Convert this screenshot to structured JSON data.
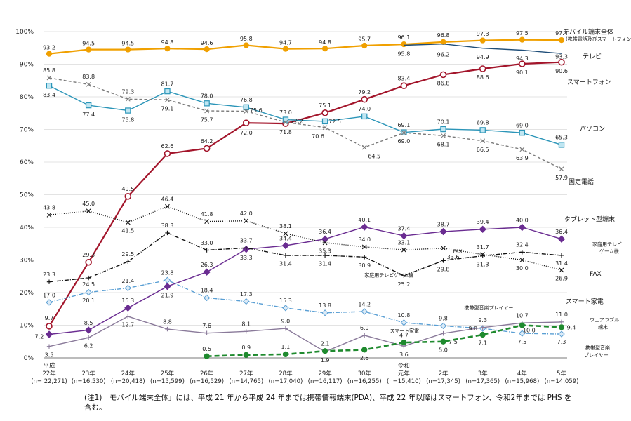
{
  "chart_data": {
    "type": "line",
    "ylim": [
      0,
      100
    ],
    "y_ticks": [
      "0%",
      "10%",
      "20%",
      "30%",
      "40%",
      "50%",
      "60%",
      "70%",
      "80%",
      "90%",
      "100%"
    ],
    "grid": true,
    "categories": [
      {
        "line1": "平成",
        "line2": "22年",
        "line3": "(n= 22,271)"
      },
      {
        "line1": "",
        "line2": "23年",
        "line3": "(n=16,530)"
      },
      {
        "line1": "",
        "line2": "24年",
        "line3": "(n=20,418)"
      },
      {
        "line1": "",
        "line2": "25年",
        "line3": "(n=15,599)"
      },
      {
        "line1": "",
        "line2": "26年",
        "line3": "(n=16,529)"
      },
      {
        "line1": "",
        "line2": "27年",
        "line3": "(n=14,765)"
      },
      {
        "line1": "",
        "line2": "28年",
        "line3": "(n=17,040)"
      },
      {
        "line1": "",
        "line2": "29年",
        "line3": "(n=16,117)"
      },
      {
        "line1": "",
        "line2": "30年",
        "line3": "(n=16,255)"
      },
      {
        "line1": "令和",
        "line2": "元年",
        "line3": "(n=15,410)"
      },
      {
        "line1": "",
        "line2": "2年",
        "line3": "(n=17,345)"
      },
      {
        "line1": "",
        "line2": "3年",
        "line3": "(n=17,365)"
      },
      {
        "line1": "",
        "line2": "4年",
        "line3": "(n=15,968)"
      },
      {
        "line1": "",
        "line2": "5年",
        "line3": "(n=14,059)"
      }
    ],
    "series": [
      {
        "name": "モバイル端末全体",
        "name_sub": "(携帯電話及びスマートフォン) (注1)",
        "color": "#f0a000",
        "marker": "circle",
        "dash": "",
        "values": [
          93.2,
          94.5,
          94.5,
          94.8,
          94.6,
          95.8,
          94.7,
          94.8,
          95.7,
          96.1,
          96.8,
          97.3,
          97.5,
          97.4
        ]
      },
      {
        "name": "テレビ",
        "color": "#1f4e79",
        "marker": "none",
        "dash": "",
        "values": [
          null,
          null,
          null,
          null,
          null,
          null,
          null,
          null,
          null,
          95.8,
          96.2,
          94.9,
          94.3,
          93.3
        ]
      },
      {
        "name": "スマートフォン",
        "color": "#a3152b",
        "marker": "circle-open",
        "dash": "",
        "values": [
          9.7,
          29.3,
          49.5,
          62.6,
          64.2,
          72.0,
          71.8,
          75.1,
          79.2,
          83.4,
          86.8,
          88.6,
          90.1,
          90.6
        ]
      },
      {
        "name": "パソコン",
        "color": "#2b95b8",
        "marker": "square-open",
        "dash": "",
        "values": [
          83.4,
          77.4,
          75.8,
          81.7,
          78.0,
          76.8,
          73.0,
          72.5,
          74.0,
          69.1,
          70.1,
          69.8,
          69.0,
          65.3
        ]
      },
      {
        "name": "固定電話",
        "color": "#7a7a7a",
        "marker": "x",
        "dash": "4,3",
        "values": [
          85.8,
          83.8,
          79.3,
          79.1,
          75.7,
          75.6,
          72.2,
          70.6,
          64.5,
          69.0,
          68.1,
          66.5,
          63.9,
          57.9
        ]
      },
      {
        "name": "タブレット型端末",
        "color": "#6a2c91",
        "marker": "diamond",
        "dash": "",
        "values": [
          7.2,
          8.5,
          15.3,
          21.9,
          26.3,
          33.3,
          34.4,
          36.4,
          40.1,
          37.4,
          38.7,
          39.4,
          40.0,
          36.4
        ]
      },
      {
        "name": "家庭用テレビ ゲーム機",
        "color": "#111111",
        "marker": "plus",
        "dash": "6,2,1,2",
        "values": [
          23.3,
          24.5,
          29.5,
          38.3,
          33.0,
          33.7,
          31.4,
          31.4,
          30.9,
          25.2,
          29.8,
          31.3,
          32.4,
          31.4
        ]
      },
      {
        "name": "FAX",
        "color": "#111111",
        "marker": "x",
        "dash": "1,2",
        "values": [
          43.8,
          45.0,
          41.5,
          46.4,
          41.8,
          42.0,
          38.1,
          35.3,
          34.0,
          33.1,
          33.6,
          31.7,
          30.0,
          26.9
        ]
      },
      {
        "name": "携帯型音楽プレイヤー",
        "color": "#5a9fd4",
        "marker": "diamond-open",
        "dash": "6,2,1,2",
        "values": [
          17.0,
          20.1,
          21.4,
          23.8,
          18.4,
          17.3,
          15.3,
          13.8,
          14.2,
          10.8,
          9.8,
          9.0,
          7.5,
          7.3
        ]
      },
      {
        "name": "スマート家電",
        "color": "#8a7a9a",
        "marker": "plus",
        "dash": "",
        "values": [
          3.5,
          6.2,
          12.7,
          8.8,
          7.6,
          8.1,
          9.0,
          1.9,
          6.9,
          3.6,
          7.5,
          9.3,
          10.7,
          11.0
        ]
      },
      {
        "name": "ウェアラブル端末",
        "color": "#1f8a2e",
        "marker": "circle",
        "dash": "7,4",
        "values": [
          null,
          null,
          null,
          null,
          0.5,
          0.9,
          1.1,
          2.1,
          2.5,
          4.7,
          5.0,
          7.1,
          10.0,
          9.4
        ]
      }
    ],
    "data_labels": [
      {
        "text": "93.2",
        "i": 0,
        "v": 95.2
      },
      {
        "text": "94.5",
        "i": 1,
        "v": 96.5
      },
      {
        "text": "94.5",
        "i": 2,
        "v": 96.5
      },
      {
        "text": "94.8",
        "i": 3,
        "v": 96.8
      },
      {
        "text": "94.6",
        "i": 4,
        "v": 96.6
      },
      {
        "text": "95.8",
        "i": 5,
        "v": 97.8
      },
      {
        "text": "94.7",
        "i": 6,
        "v": 96.7
      },
      {
        "text": "94.8",
        "i": 7,
        "v": 96.8
      },
      {
        "text": "95.7",
        "i": 8,
        "v": 97.7
      },
      {
        "text": "96.1",
        "i": 9,
        "v": 98.3
      },
      {
        "text": "96.8",
        "i": 10,
        "v": 98.9
      },
      {
        "text": "97.3",
        "i": 11,
        "v": 99.4
      },
      {
        "text": "97.5",
        "i": 12,
        "v": 99.6
      },
      {
        "text": "97.4",
        "i": 13,
        "v": 99.6
      },
      {
        "text": "95.8",
        "i": 9,
        "v": 93.2
      },
      {
        "text": "96.2",
        "i": 10,
        "v": 93.0
      },
      {
        "text": "94.9",
        "i": 11,
        "v": 92.3
      },
      {
        "text": "94.3",
        "i": 12,
        "v": 91.8
      },
      {
        "text": "93.3",
        "i": 13,
        "v": 92.4
      },
      {
        "text": "9.7",
        "i": 0,
        "v": 12.3
      },
      {
        "text": "29.3",
        "i": 1,
        "v": 31.6
      },
      {
        "text": "49.5",
        "i": 2,
        "v": 51.8
      },
      {
        "text": "62.6",
        "i": 3,
        "v": 64.9
      },
      {
        "text": "64.2",
        "i": 4,
        "v": 66.5
      },
      {
        "text": "72.0",
        "i": 5,
        "v": 69.0
      },
      {
        "text": "71.8",
        "i": 6,
        "v": 69.2
      },
      {
        "text": "75.1",
        "i": 7,
        "v": 77.4
      },
      {
        "text": "79.2",
        "i": 8,
        "v": 81.5
      },
      {
        "text": "83.4",
        "i": 9,
        "v": 85.7
      },
      {
        "text": "86.8",
        "i": 10,
        "v": 84.2
      },
      {
        "text": "88.6",
        "i": 11,
        "v": 86.0
      },
      {
        "text": "90.1",
        "i": 12,
        "v": 87.5
      },
      {
        "text": "90.6",
        "i": 13,
        "v": 88.0
      },
      {
        "text": "83.4",
        "i": 0,
        "v": 80.6
      },
      {
        "text": "77.4",
        "i": 1,
        "v": 74.6
      },
      {
        "text": "75.8",
        "i": 2,
        "v": 73.0
      },
      {
        "text": "81.7",
        "i": 3,
        "v": 84.0
      },
      {
        "text": "78.0",
        "i": 4,
        "v": 80.3
      },
      {
        "text": "76.8",
        "i": 5,
        "v": 79.1
      },
      {
        "text": "73.0",
        "i": 6,
        "v": 75.3
      },
      {
        "text": "72.5",
        "i": 7,
        "v": 72.5,
        "dx": 14
      },
      {
        "text": "74.0",
        "i": 8,
        "v": 76.3
      },
      {
        "text": "69.1",
        "i": 9,
        "v": 71.4
      },
      {
        "text": "70.1",
        "i": 10,
        "v": 72.4
      },
      {
        "text": "69.8",
        "i": 11,
        "v": 72.1
      },
      {
        "text": "69.0",
        "i": 12,
        "v": 71.3
      },
      {
        "text": "65.3",
        "i": 13,
        "v": 67.6
      },
      {
        "text": "85.8",
        "i": 0,
        "v": 88.2
      },
      {
        "text": "83.8",
        "i": 1,
        "v": 86.2
      },
      {
        "text": "79.3",
        "i": 2,
        "v": 81.6
      },
      {
        "text": "79.1",
        "i": 3,
        "v": 76.4
      },
      {
        "text": "75.7",
        "i": 4,
        "v": 73.0
      },
      {
        "text": "75.6",
        "i": 5,
        "v": 75.9,
        "dx": 14
      },
      {
        "text": "72.2",
        "i": 6,
        "v": 72.6,
        "dx": 16
      },
      {
        "text": "70.6",
        "i": 7,
        "v": 68.0,
        "dx": -10
      },
      {
        "text": "64.5",
        "i": 8,
        "v": 61.8,
        "dx": 14
      },
      {
        "text": "69.0",
        "i": 9,
        "v": 66.4
      },
      {
        "text": "68.1",
        "i": 10,
        "v": 65.5
      },
      {
        "text": "66.5",
        "i": 11,
        "v": 63.9
      },
      {
        "text": "63.9",
        "i": 12,
        "v": 61.3
      },
      {
        "text": "57.9",
        "i": 13,
        "v": 55.3
      },
      {
        "text": "7.2",
        "i": 0,
        "v": 6.6,
        "dx": -14
      },
      {
        "text": "8.5",
        "i": 1,
        "v": 10.8
      },
      {
        "text": "15.3",
        "i": 2,
        "v": 17.6
      },
      {
        "text": "21.9",
        "i": 3,
        "v": 19.3
      },
      {
        "text": "26.3",
        "i": 4,
        "v": 28.6
      },
      {
        "text": "33.3",
        "i": 5,
        "v": 30.7
      },
      {
        "text": "34.4",
        "i": 6,
        "v": 36.7
      },
      {
        "text": "36.4",
        "i": 7,
        "v": 38.7
      },
      {
        "text": "40.1",
        "i": 8,
        "v": 42.4
      },
      {
        "text": "37.4",
        "i": 9,
        "v": 39.7
      },
      {
        "text": "38.7",
        "i": 10,
        "v": 41.0
      },
      {
        "text": "39.4",
        "i": 11,
        "v": 41.7
      },
      {
        "text": "40.0",
        "i": 12,
        "v": 42.3
      },
      {
        "text": "36.4",
        "i": 13,
        "v": 38.7
      },
      {
        "text": "23.3",
        "i": 0,
        "v": 25.6
      },
      {
        "text": "24.5",
        "i": 1,
        "v": 22.6
      },
      {
        "text": "29.5",
        "i": 2,
        "v": 31.8
      },
      {
        "text": "38.3",
        "i": 3,
        "v": 40.6
      },
      {
        "text": "33.0",
        "i": 4,
        "v": 35.3
      },
      {
        "text": "33.7",
        "i": 5,
        "v": 36.0
      },
      {
        "text": "31.4",
        "i": 6,
        "v": 28.9
      },
      {
        "text": "31.4",
        "i": 7,
        "v": 28.9
      },
      {
        "text": "30.9",
        "i": 8,
        "v": 28.4
      },
      {
        "text": "25.2",
        "i": 9,
        "v": 22.6
      },
      {
        "text": "29.8",
        "i": 10,
        "v": 27.2
      },
      {
        "text": "31.3",
        "i": 11,
        "v": 28.7
      },
      {
        "text": "32.4",
        "i": 12,
        "v": 34.7
      },
      {
        "text": "31.4",
        "i": 13,
        "v": 29.0
      },
      {
        "text": "43.8",
        "i": 0,
        "v": 46.1
      },
      {
        "text": "45.0",
        "i": 1,
        "v": 47.3
      },
      {
        "text": "41.5",
        "i": 2,
        "v": 39.0
      },
      {
        "text": "46.4",
        "i": 3,
        "v": 48.7
      },
      {
        "text": "41.8",
        "i": 4,
        "v": 44.1
      },
      {
        "text": "42.0",
        "i": 5,
        "v": 44.3
      },
      {
        "text": "38.1",
        "i": 6,
        "v": 40.4
      },
      {
        "text": "35.3",
        "i": 7,
        "v": 32.8
      },
      {
        "text": "34.0",
        "i": 8,
        "v": 36.3
      },
      {
        "text": "33.1",
        "i": 9,
        "v": 35.4
      },
      {
        "text": "33.6",
        "i": 10,
        "v": 31.0,
        "dx": 14
      },
      {
        "text": "31.7",
        "i": 11,
        "v": 34.0
      },
      {
        "text": "30.0",
        "i": 12,
        "v": 27.5
      },
      {
        "text": "26.9",
        "i": 13,
        "v": 24.4
      },
      {
        "text": "17.0",
        "i": 0,
        "v": 19.3
      },
      {
        "text": "20.1",
        "i": 1,
        "v": 17.6
      },
      {
        "text": "21.4",
        "i": 2,
        "v": 23.7
      },
      {
        "text": "23.8",
        "i": 3,
        "v": 26.1
      },
      {
        "text": "18.4",
        "i": 4,
        "v": 20.7
      },
      {
        "text": "17.3",
        "i": 5,
        "v": 19.6
      },
      {
        "text": "15.3",
        "i": 6,
        "v": 17.6
      },
      {
        "text": "13.8",
        "i": 7,
        "v": 16.1
      },
      {
        "text": "14.2",
        "i": 8,
        "v": 16.5
      },
      {
        "text": "10.8",
        "i": 9,
        "v": 13.1
      },
      {
        "text": "9.8",
        "i": 10,
        "v": 12.1
      },
      {
        "text": "9.0",
        "i": 11,
        "v": 9.0,
        "dx": -14
      },
      {
        "text": "7.5",
        "i": 12,
        "v": 5.0
      },
      {
        "text": "7.3",
        "i": 13,
        "v": 5.0
      },
      {
        "text": "3.5",
        "i": 0,
        "v": 1.0
      },
      {
        "text": "6.2",
        "i": 1,
        "v": 3.8
      },
      {
        "text": "12.7",
        "i": 2,
        "v": 10.2
      },
      {
        "text": "8.8",
        "i": 3,
        "v": 11.1
      },
      {
        "text": "7.6",
        "i": 4,
        "v": 9.9
      },
      {
        "text": "8.1",
        "i": 5,
        "v": 10.4
      },
      {
        "text": "9.0",
        "i": 6,
        "v": 11.3
      },
      {
        "text": "1.9",
        "i": 7,
        "v": -0.6
      },
      {
        "text": "6.9",
        "i": 8,
        "v": 9.2
      },
      {
        "text": "3.6",
        "i": 9,
        "v": 1.1
      },
      {
        "text": "7.5",
        "i": 10,
        "v": 5.0,
        "dx": 14
      },
      {
        "text": "9.3",
        "i": 11,
        "v": 11.6
      },
      {
        "text": "10.7",
        "i": 12,
        "v": 13.0
      },
      {
        "text": "11.0",
        "i": 13,
        "v": 13.3
      },
      {
        "text": "0.5",
        "i": 4,
        "v": 2.8
      },
      {
        "text": "0.9",
        "i": 5,
        "v": 3.2
      },
      {
        "text": "1.1",
        "i": 6,
        "v": 3.4
      },
      {
        "text": "2.1",
        "i": 7,
        "v": 4.4
      },
      {
        "text": "2.5",
        "i": 8,
        "v": 0.0
      },
      {
        "text": "4.7",
        "i": 9,
        "v": 7.0
      },
      {
        "text": "5.0",
        "i": 10,
        "v": 2.5
      },
      {
        "text": "7.1",
        "i": 11,
        "v": 4.6
      },
      {
        "text": "10.0",
        "i": 12,
        "v": 8.5,
        "dx": 10
      },
      {
        "text": "9.4",
        "i": 13,
        "v": 9.4,
        "dx": 14
      }
    ],
    "series_labels": [
      {
        "text": "モバイル端末全体",
        "i": 13,
        "v": 99.9,
        "dx": 2,
        "small": false
      },
      {
        "text": "(携帯電話及びスマートフォン)  (注1)",
        "i": 13,
        "v": 97.9,
        "dx": 6,
        "small": true
      },
      {
        "text": "テレビ",
        "i": 13,
        "v": 92.4,
        "dx": 30,
        "small": false
      },
      {
        "text": "スマートフォン",
        "i": 13,
        "v": 84.5,
        "dx": 8,
        "small": false
      },
      {
        "text": "パソコン",
        "i": 13,
        "v": 70.2,
        "dx": 26,
        "small": false
      },
      {
        "text": "固定電話",
        "i": 13,
        "v": 54.0,
        "dx": 10,
        "small": false
      },
      {
        "text": "タブレット型端末",
        "i": 13,
        "v": 42.5,
        "dx": 4,
        "small": false
      },
      {
        "text": "家庭用テレビ",
        "i": 13,
        "v": 35.0,
        "dx": 44,
        "small": true
      },
      {
        "text": "ゲーム機",
        "i": 13,
        "v": 32.8,
        "dx": 54,
        "small": true
      },
      {
        "text": "FAX",
        "i": 13,
        "v": 25.8,
        "dx": 40,
        "small": false
      },
      {
        "text": "FAX",
        "i": 10,
        "v": 32.8,
        "dx": 14,
        "small": true
      },
      {
        "text": "家庭用テレビゲーム機",
        "i": 8,
        "v": 25.5,
        "dx": 0,
        "small": true
      },
      {
        "text": "スマート家電",
        "i": 13,
        "v": 17.3,
        "dx": 6,
        "small": false
      },
      {
        "text": "携帯型音楽プレイヤー",
        "i": 10,
        "v": 15.5,
        "dx": 30,
        "small": true
      },
      {
        "text": "ウェアラブル",
        "i": 13,
        "v": 11.8,
        "dx": 40,
        "small": true
      },
      {
        "text": "端末",
        "i": 13,
        "v": 9.6,
        "dx": 52,
        "small": true
      },
      {
        "text": "スマート家電",
        "i": 9,
        "v": 8.4,
        "dx": -20,
        "small": true
      },
      {
        "text": "携帯型音楽",
        "i": 13,
        "v": 3.2,
        "dx": 34,
        "small": true
      },
      {
        "text": "プレイヤー",
        "i": 13,
        "v": 1.0,
        "dx": 32,
        "small": true
      }
    ],
    "footnote": "(注1)「モバイル端末全体」には、平成 21 年から平成 24 年までは携帯情報端末(PDA)、平成 22 年以降はスマートフォン、令和2年までは PHS を含む。"
  }
}
